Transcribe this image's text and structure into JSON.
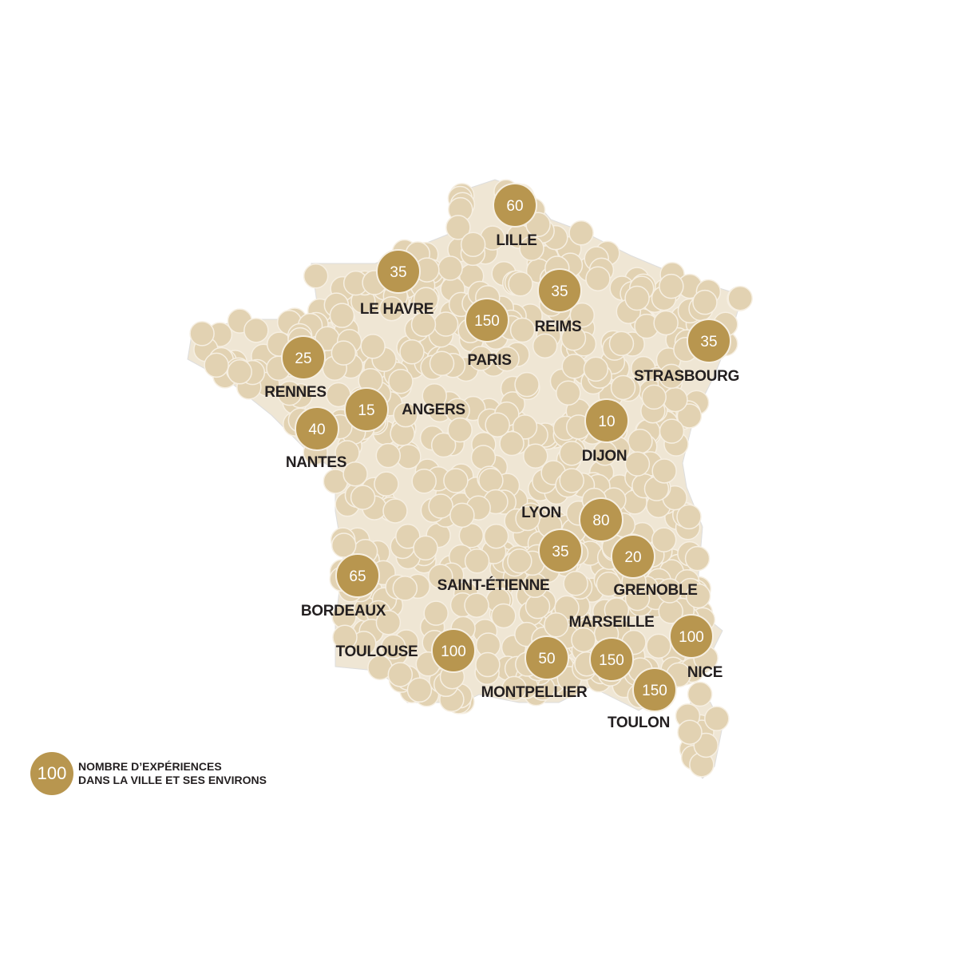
{
  "colors": {
    "marker": "#b8964f",
    "dots": "#e2d2b2",
    "land": "#efe6d4",
    "text": "#231f20"
  },
  "cities": [
    {
      "name": "LILLE",
      "value": "60"
    },
    {
      "name": "LE HAVRE",
      "value": "35"
    },
    {
      "name": "REIMS",
      "value": "35"
    },
    {
      "name": "PARIS",
      "value": "150"
    },
    {
      "name": "STRASBOURG",
      "value": "35"
    },
    {
      "name": "RENNES",
      "value": "25"
    },
    {
      "name": "ANGERS",
      "value": "15"
    },
    {
      "name": "NANTES",
      "value": "40"
    },
    {
      "name": "DIJON",
      "value": "10"
    },
    {
      "name": "LYON",
      "value": "80"
    },
    {
      "name": "SAINT-ÉTIENNE",
      "value": "35"
    },
    {
      "name": "GRENOBLE",
      "value": "20"
    },
    {
      "name": "BORDEAUX",
      "value": "65"
    },
    {
      "name": "MARSEILLE",
      "value": "150"
    },
    {
      "name": "NICE",
      "value": "100"
    },
    {
      "name": "TOULOUSE",
      "value": "100"
    },
    {
      "name": "MONTPELLIER",
      "value": "50"
    },
    {
      "name": "TOULON",
      "value": "150"
    }
  ],
  "legend": {
    "sample_value": "100",
    "line1": "NOMBRE D’EXPÉRIENCES",
    "line2": "DANS LA VILLE ET SES ENVIRONS"
  }
}
